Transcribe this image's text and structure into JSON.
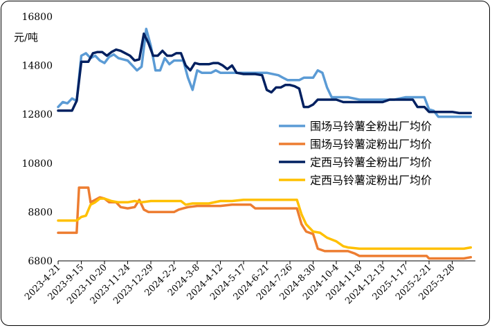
{
  "chart_data": {
    "type": "line",
    "title": "",
    "ylabel": "元/吨",
    "xlabel": "",
    "ylim": [
      6800,
      16800
    ],
    "yticks": [
      6800,
      8800,
      10800,
      12800,
      14800,
      16800
    ],
    "xticks": [
      "2023-4-21",
      "2023-9-15",
      "2023-10-20",
      "2023-11-24",
      "2023-12-29",
      "2024-2-2",
      "2024-3-8",
      "2024-4-12",
      "2024-5-17",
      "2024-6-21",
      "2024-7-26",
      "2024-8-30",
      "2024-10-4",
      "2024-11-8",
      "2024-12-13",
      "2025-1-17",
      "2025-2-21",
      "2025-3-28"
    ],
    "x_range": [
      0,
      17.8
    ],
    "legend_position": "right",
    "series": [
      {
        "name": "围场马铃薯全粉出厂均价",
        "color": "#5b9bd5",
        "points": [
          [
            0,
            13100
          ],
          [
            0.2,
            13300
          ],
          [
            0.4,
            13250
          ],
          [
            0.6,
            13450
          ],
          [
            0.8,
            13350
          ],
          [
            1.0,
            15200
          ],
          [
            1.2,
            15300
          ],
          [
            1.4,
            15100
          ],
          [
            1.6,
            15200
          ],
          [
            1.8,
            15000
          ],
          [
            2.0,
            14900
          ],
          [
            2.2,
            15150
          ],
          [
            2.4,
            15250
          ],
          [
            2.6,
            15100
          ],
          [
            2.8,
            15050
          ],
          [
            3.0,
            15000
          ],
          [
            3.2,
            14800
          ],
          [
            3.4,
            14600
          ],
          [
            3.6,
            14750
          ],
          [
            3.8,
            16300
          ],
          [
            4.0,
            15600
          ],
          [
            4.2,
            14600
          ],
          [
            4.4,
            14600
          ],
          [
            4.6,
            15100
          ],
          [
            4.8,
            14850
          ],
          [
            5.0,
            15000
          ],
          [
            5.2,
            15000
          ],
          [
            5.4,
            15000
          ],
          [
            5.6,
            14300
          ],
          [
            5.8,
            13800
          ],
          [
            6.0,
            14600
          ],
          [
            6.2,
            14500
          ],
          [
            6.4,
            14500
          ],
          [
            6.6,
            14500
          ],
          [
            6.8,
            14600
          ],
          [
            7.0,
            14500
          ],
          [
            7.5,
            14500
          ],
          [
            8.0,
            14500
          ],
          [
            8.5,
            14500
          ],
          [
            9.0,
            14500
          ],
          [
            9.5,
            14400
          ],
          [
            9.7,
            14300
          ],
          [
            9.9,
            14200
          ],
          [
            10.4,
            14200
          ],
          [
            10.6,
            14300
          ],
          [
            11.0,
            14300
          ],
          [
            11.2,
            14600
          ],
          [
            11.4,
            14500
          ],
          [
            11.6,
            13900
          ],
          [
            11.8,
            13500
          ],
          [
            12.0,
            13500
          ],
          [
            12.5,
            13500
          ],
          [
            13.0,
            13400
          ],
          [
            13.5,
            13400
          ],
          [
            14.0,
            13400
          ],
          [
            14.5,
            13400
          ],
          [
            15.0,
            13500
          ],
          [
            15.5,
            13500
          ],
          [
            15.8,
            13500
          ],
          [
            16.0,
            13000
          ],
          [
            16.2,
            12950
          ],
          [
            16.4,
            12700
          ],
          [
            17.0,
            12700
          ],
          [
            17.5,
            12700
          ],
          [
            17.8,
            12700
          ]
        ]
      },
      {
        "name": "围场马铃薯淀粉出厂均价",
        "color": "#ed7d31",
        "points": [
          [
            0,
            7950
          ],
          [
            0.5,
            7950
          ],
          [
            0.8,
            7950
          ],
          [
            0.9,
            9800
          ],
          [
            1.0,
            9800
          ],
          [
            1.3,
            9800
          ],
          [
            1.4,
            9200
          ],
          [
            1.6,
            9300
          ],
          [
            1.8,
            9400
          ],
          [
            2.0,
            9350
          ],
          [
            2.2,
            9200
          ],
          [
            2.5,
            9200
          ],
          [
            2.7,
            9000
          ],
          [
            3.0,
            8950
          ],
          [
            3.3,
            9000
          ],
          [
            3.5,
            9300
          ],
          [
            3.7,
            8900
          ],
          [
            3.9,
            8800
          ],
          [
            4.2,
            8800
          ],
          [
            4.5,
            8800
          ],
          [
            4.8,
            8800
          ],
          [
            5.0,
            8800
          ],
          [
            5.2,
            8900
          ],
          [
            5.4,
            8950
          ],
          [
            5.6,
            9000
          ],
          [
            6.0,
            9050
          ],
          [
            6.5,
            9050
          ],
          [
            7.0,
            9050
          ],
          [
            7.5,
            9100
          ],
          [
            8.0,
            9100
          ],
          [
            8.3,
            9100
          ],
          [
            8.5,
            8950
          ],
          [
            9.0,
            8950
          ],
          [
            9.5,
            8950
          ],
          [
            10.0,
            8950
          ],
          [
            10.3,
            8950
          ],
          [
            10.5,
            8300
          ],
          [
            10.7,
            8000
          ],
          [
            11.0,
            7900
          ],
          [
            11.2,
            7300
          ],
          [
            11.5,
            7200
          ],
          [
            12.0,
            7200
          ],
          [
            12.5,
            7200
          ],
          [
            12.8,
            7100
          ],
          [
            13.0,
            7000
          ],
          [
            13.5,
            7000
          ],
          [
            14.0,
            7000
          ],
          [
            14.5,
            7000
          ],
          [
            15.0,
            7000
          ],
          [
            15.5,
            7000
          ],
          [
            15.9,
            7000
          ],
          [
            16.0,
            6900
          ],
          [
            16.5,
            6900
          ],
          [
            17.0,
            6900
          ],
          [
            17.5,
            6900
          ],
          [
            17.8,
            6950
          ]
        ]
      },
      {
        "name": "定西马铃薯全粉出厂均价",
        "color": "#002060",
        "points": [
          [
            0,
            12950
          ],
          [
            0.2,
            12950
          ],
          [
            0.4,
            12950
          ],
          [
            0.6,
            12950
          ],
          [
            0.8,
            13350
          ],
          [
            1.0,
            14950
          ],
          [
            1.3,
            14950
          ],
          [
            1.5,
            15300
          ],
          [
            1.7,
            15350
          ],
          [
            1.9,
            15350
          ],
          [
            2.1,
            15200
          ],
          [
            2.3,
            15350
          ],
          [
            2.5,
            15450
          ],
          [
            2.7,
            15400
          ],
          [
            2.9,
            15300
          ],
          [
            3.1,
            15200
          ],
          [
            3.3,
            15000
          ],
          [
            3.5,
            15050
          ],
          [
            3.7,
            16100
          ],
          [
            3.9,
            15700
          ],
          [
            4.1,
            15200
          ],
          [
            4.3,
            15200
          ],
          [
            4.5,
            15400
          ],
          [
            4.7,
            15200
          ],
          [
            4.9,
            15200
          ],
          [
            5.1,
            15300
          ],
          [
            5.3,
            15300
          ],
          [
            5.5,
            14800
          ],
          [
            5.7,
            14600
          ],
          [
            5.9,
            14900
          ],
          [
            6.1,
            14850
          ],
          [
            6.3,
            14850
          ],
          [
            6.5,
            14850
          ],
          [
            6.7,
            14900
          ],
          [
            6.9,
            14900
          ],
          [
            7.1,
            14800
          ],
          [
            7.3,
            14650
          ],
          [
            7.5,
            14800
          ],
          [
            7.7,
            14500
          ],
          [
            8.0,
            14450
          ],
          [
            8.5,
            14450
          ],
          [
            8.8,
            14400
          ],
          [
            9.0,
            13800
          ],
          [
            9.2,
            13700
          ],
          [
            9.4,
            13900
          ],
          [
            9.6,
            13900
          ],
          [
            9.8,
            14000
          ],
          [
            10.0,
            14000
          ],
          [
            10.2,
            13950
          ],
          [
            10.4,
            13850
          ],
          [
            10.6,
            13100
          ],
          [
            10.8,
            13100
          ],
          [
            11.0,
            13200
          ],
          [
            11.2,
            13400
          ],
          [
            11.5,
            13400
          ],
          [
            12.0,
            13400
          ],
          [
            12.3,
            13300
          ],
          [
            12.8,
            13300
          ],
          [
            13.3,
            13300
          ],
          [
            13.8,
            13300
          ],
          [
            14.0,
            13300
          ],
          [
            14.3,
            13400
          ],
          [
            14.8,
            13400
          ],
          [
            15.0,
            13400
          ],
          [
            15.3,
            13400
          ],
          [
            15.5,
            13100
          ],
          [
            15.8,
            13100
          ],
          [
            16.0,
            12900
          ],
          [
            16.5,
            12900
          ],
          [
            17.0,
            12900
          ],
          [
            17.3,
            12850
          ],
          [
            17.8,
            12850
          ]
        ]
      },
      {
        "name": "定西马铃薯淀粉出厂均价",
        "color": "#ffc000",
        "points": [
          [
            0,
            8450
          ],
          [
            0.3,
            8450
          ],
          [
            0.6,
            8450
          ],
          [
            0.8,
            8450
          ],
          [
            1.0,
            8600
          ],
          [
            1.2,
            8650
          ],
          [
            1.4,
            9100
          ],
          [
            1.6,
            9200
          ],
          [
            1.8,
            9350
          ],
          [
            2.0,
            9350
          ],
          [
            2.3,
            9250
          ],
          [
            2.6,
            9200
          ],
          [
            3.0,
            9200
          ],
          [
            3.3,
            9250
          ],
          [
            3.6,
            9200
          ],
          [
            4.0,
            9250
          ],
          [
            4.5,
            9250
          ],
          [
            5.0,
            9250
          ],
          [
            5.3,
            9250
          ],
          [
            5.5,
            9100
          ],
          [
            5.8,
            9150
          ],
          [
            6.0,
            9150
          ],
          [
            6.5,
            9150
          ],
          [
            7.0,
            9250
          ],
          [
            7.5,
            9250
          ],
          [
            8.0,
            9300
          ],
          [
            8.5,
            9300
          ],
          [
            9.0,
            9300
          ],
          [
            9.5,
            9300
          ],
          [
            10.0,
            9300
          ],
          [
            10.3,
            9300
          ],
          [
            10.5,
            8700
          ],
          [
            10.7,
            8300
          ],
          [
            11.0,
            8000
          ],
          [
            11.3,
            7950
          ],
          [
            11.6,
            7750
          ],
          [
            12.0,
            7600
          ],
          [
            12.3,
            7400
          ],
          [
            12.5,
            7350
          ],
          [
            13.0,
            7300
          ],
          [
            13.5,
            7300
          ],
          [
            14.0,
            7300
          ],
          [
            14.5,
            7300
          ],
          [
            15.0,
            7300
          ],
          [
            15.5,
            7300
          ],
          [
            16.0,
            7300
          ],
          [
            16.5,
            7300
          ],
          [
            17.0,
            7300
          ],
          [
            17.5,
            7300
          ],
          [
            17.8,
            7350
          ]
        ]
      }
    ]
  }
}
